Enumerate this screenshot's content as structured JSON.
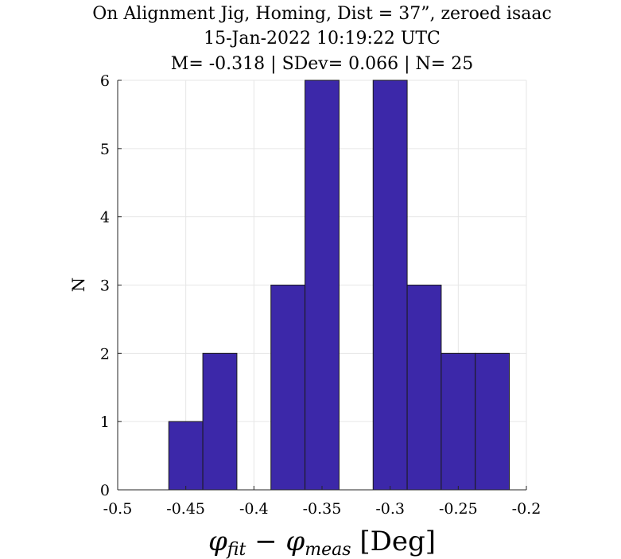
{
  "chart_data": {
    "type": "bar",
    "title": [
      "On Alignment Jig, Homing, Dist = 37”, zeroed isaac",
      "15-Jan-2022 10:19:22 UTC",
      "M= -0.318 | SDev= 0.066 | N= 25"
    ],
    "xlabel": {
      "main": "φ",
      "sub1": "fit",
      "op": " − φ",
      "sub2": "meas",
      "unit": " [Deg]"
    },
    "ylabel": "N",
    "xlim": [
      -0.5,
      -0.2
    ],
    "ylim": [
      0,
      6
    ],
    "xticks": [
      "-0.5",
      "-0.45",
      "-0.4",
      "-0.35",
      "-0.3",
      "-0.25",
      "-0.2"
    ],
    "yticks": [
      "0",
      "1",
      "2",
      "3",
      "4",
      "5",
      "6"
    ],
    "grid": true,
    "bar_color": "#3c28a9",
    "bins": [
      {
        "x0": -0.4625,
        "x1": -0.4375,
        "count": 1
      },
      {
        "x0": -0.4375,
        "x1": -0.4125,
        "count": 2
      },
      {
        "x0": -0.4125,
        "x1": -0.3875,
        "count": 0
      },
      {
        "x0": -0.3875,
        "x1": -0.3625,
        "count": 3
      },
      {
        "x0": -0.3625,
        "x1": -0.3375,
        "count": 6
      },
      {
        "x0": -0.3375,
        "x1": -0.3125,
        "count": 0
      },
      {
        "x0": -0.3125,
        "x1": -0.2875,
        "count": 6
      },
      {
        "x0": -0.2875,
        "x1": -0.2625,
        "count": 3
      },
      {
        "x0": -0.2625,
        "x1": -0.2375,
        "count": 2
      },
      {
        "x0": -0.2375,
        "x1": -0.2125,
        "count": 2
      }
    ]
  }
}
